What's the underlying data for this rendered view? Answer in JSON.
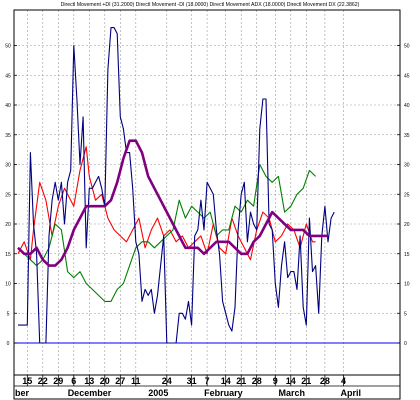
{
  "chart_data": {
    "type": "line",
    "title": "Directl Movement +DI (31.2000) Directl Movement -DI (18.0000) Directl Movement ADX (18.0000) Directl Movement DX (22.3862)",
    "xlabel": "",
    "ylabel": "",
    "ylim": [
      -5,
      55
    ],
    "grid": true,
    "n_points": 113,
    "y_ticks": [
      0,
      5,
      10,
      15,
      20,
      25,
      30,
      35,
      40,
      45,
      50
    ],
    "y_tick_labels": [
      "0",
      "5",
      "10",
      "15",
      "20",
      "25",
      "30",
      "35",
      "40",
      "45",
      "50"
    ],
    "x_ticks": [
      {
        "i": 3,
        "label": "15"
      },
      {
        "i": 8,
        "label": "22"
      },
      {
        "i": 13,
        "label": "29"
      },
      {
        "i": 18,
        "label": "6"
      },
      {
        "i": 23,
        "label": "13"
      },
      {
        "i": 28,
        "label": "20"
      },
      {
        "i": 33,
        "label": "27"
      },
      {
        "i": 38,
        "label": "11"
      },
      {
        "i": 48,
        "label": "24"
      },
      {
        "i": 56,
        "label": "31"
      },
      {
        "i": 61,
        "label": "7"
      },
      {
        "i": 67,
        "label": "14"
      },
      {
        "i": 72,
        "label": "21"
      },
      {
        "i": 77,
        "label": "28"
      },
      {
        "i": 83,
        "label": "9"
      },
      {
        "i": 88,
        "label": "14"
      },
      {
        "i": 93,
        "label": "21"
      },
      {
        "i": 99,
        "label": "28"
      },
      {
        "i": 105,
        "label": "4"
      }
    ],
    "months": [
      {
        "i": 1,
        "label": "ber"
      },
      {
        "i": 17,
        "label": "December"
      },
      {
        "i": 43,
        "label": "2005"
      },
      {
        "i": 61,
        "label": "February"
      },
      {
        "i": 85,
        "label": "March"
      },
      {
        "i": 105,
        "label": "April"
      }
    ],
    "series": [
      {
        "color": "#ff0000",
        "points": [
          [
            0,
            15
          ],
          [
            2,
            17
          ],
          [
            4,
            14
          ],
          [
            5,
            19
          ],
          [
            7,
            27
          ],
          [
            9,
            24
          ],
          [
            11,
            18
          ],
          [
            13,
            23
          ],
          [
            15,
            26
          ],
          [
            16,
            25
          ],
          [
            18,
            23
          ],
          [
            20,
            29
          ],
          [
            22,
            33
          ],
          [
            23,
            28
          ],
          [
            25,
            24
          ],
          [
            27,
            25
          ],
          [
            29,
            21
          ],
          [
            31,
            19
          ],
          [
            33,
            18
          ],
          [
            35,
            17
          ],
          [
            37,
            19
          ],
          [
            39,
            21
          ],
          [
            41,
            16
          ],
          [
            43,
            19
          ],
          [
            45,
            21
          ],
          [
            47,
            18
          ],
          [
            49,
            19
          ],
          [
            51,
            17
          ],
          [
            53,
            18
          ],
          [
            55,
            16
          ],
          [
            57,
            17
          ],
          [
            59,
            18
          ],
          [
            61,
            15
          ],
          [
            63,
            20
          ],
          [
            65,
            16
          ],
          [
            67,
            15
          ],
          [
            69,
            21
          ],
          [
            71,
            18
          ],
          [
            73,
            16
          ],
          [
            75,
            14
          ],
          [
            77,
            19
          ],
          [
            79,
            22
          ],
          [
            81,
            21
          ],
          [
            83,
            17
          ],
          [
            85,
            18
          ],
          [
            87,
            20
          ],
          [
            89,
            19
          ],
          [
            91,
            16
          ],
          [
            93,
            20
          ],
          [
            95,
            17
          ],
          [
            96,
            17
          ]
        ]
      },
      {
        "color": "#008000",
        "points": [
          [
            0,
            16
          ],
          [
            2,
            15
          ],
          [
            4,
            14
          ],
          [
            6,
            13
          ],
          [
            8,
            14
          ],
          [
            10,
            16
          ],
          [
            12,
            20
          ],
          [
            14,
            19
          ],
          [
            16,
            12
          ],
          [
            18,
            11
          ],
          [
            20,
            12
          ],
          [
            22,
            10
          ],
          [
            24,
            9
          ],
          [
            26,
            8
          ],
          [
            28,
            7
          ],
          [
            30,
            7
          ],
          [
            32,
            9
          ],
          [
            34,
            10
          ],
          [
            36,
            13
          ],
          [
            38,
            16
          ],
          [
            40,
            17
          ],
          [
            42,
            17
          ],
          [
            44,
            16
          ],
          [
            46,
            17
          ],
          [
            48,
            18
          ],
          [
            50,
            19
          ],
          [
            52,
            24
          ],
          [
            54,
            21
          ],
          [
            56,
            23
          ],
          [
            58,
            22
          ],
          [
            60,
            21
          ],
          [
            62,
            22
          ],
          [
            64,
            18
          ],
          [
            66,
            19
          ],
          [
            68,
            19
          ],
          [
            70,
            23
          ],
          [
            72,
            22
          ],
          [
            74,
            24
          ],
          [
            76,
            23
          ],
          [
            78,
            30
          ],
          [
            80,
            28
          ],
          [
            82,
            27
          ],
          [
            84,
            28
          ],
          [
            86,
            22
          ],
          [
            88,
            23
          ],
          [
            90,
            25
          ],
          [
            92,
            26
          ],
          [
            94,
            29
          ],
          [
            96,
            28
          ]
        ]
      },
      {
        "color": "#000080",
        "points": [
          [
            0,
            3
          ],
          [
            3,
            3
          ],
          [
            4,
            32
          ],
          [
            5,
            20
          ],
          [
            6,
            15
          ],
          [
            7,
            0
          ],
          [
            8,
            0
          ],
          [
            9,
            0
          ],
          [
            10,
            18
          ],
          [
            11,
            24
          ],
          [
            12,
            27
          ],
          [
            13,
            24
          ],
          [
            14,
            27
          ],
          [
            15,
            20
          ],
          [
            16,
            27
          ],
          [
            17,
            29
          ],
          [
            18,
            50
          ],
          [
            19,
            41
          ],
          [
            20,
            30
          ],
          [
            21,
            38
          ],
          [
            22,
            16
          ],
          [
            23,
            26
          ],
          [
            24,
            26
          ],
          [
            25,
            27
          ],
          [
            26,
            28
          ],
          [
            27,
            26
          ],
          [
            28,
            23
          ],
          [
            29,
            46
          ],
          [
            30,
            53
          ],
          [
            31,
            53
          ],
          [
            32,
            52
          ],
          [
            33,
            38
          ],
          [
            34,
            36
          ],
          [
            35,
            32
          ],
          [
            36,
            32
          ],
          [
            37,
            26
          ],
          [
            38,
            17
          ],
          [
            39,
            15
          ],
          [
            40,
            7
          ],
          [
            41,
            9
          ],
          [
            42,
            8
          ],
          [
            43,
            9
          ],
          [
            44,
            5
          ],
          [
            45,
            8
          ],
          [
            46,
            13
          ],
          [
            47,
            18
          ],
          [
            48,
            0
          ],
          [
            49,
            0
          ],
          [
            50,
            0
          ],
          [
            51,
            0
          ],
          [
            52,
            5
          ],
          [
            53,
            5
          ],
          [
            54,
            4
          ],
          [
            55,
            7
          ],
          [
            56,
            3
          ],
          [
            57,
            18
          ],
          [
            58,
            19
          ],
          [
            59,
            24
          ],
          [
            60,
            19
          ],
          [
            61,
            27
          ],
          [
            62,
            26
          ],
          [
            63,
            25
          ],
          [
            64,
            19
          ],
          [
            65,
            15
          ],
          [
            66,
            7
          ],
          [
            67,
            5
          ],
          [
            68,
            3
          ],
          [
            69,
            2
          ],
          [
            70,
            6
          ],
          [
            71,
            19
          ],
          [
            72,
            25
          ],
          [
            73,
            27
          ],
          [
            74,
            17
          ],
          [
            75,
            22
          ],
          [
            76,
            20
          ],
          [
            77,
            19
          ],
          [
            78,
            36
          ],
          [
            79,
            41
          ],
          [
            80,
            41
          ],
          [
            81,
            20
          ],
          [
            82,
            19
          ],
          [
            83,
            10
          ],
          [
            84,
            6
          ],
          [
            85,
            13
          ],
          [
            86,
            17
          ],
          [
            87,
            11
          ],
          [
            88,
            12
          ],
          [
            89,
            12
          ],
          [
            90,
            9
          ],
          [
            91,
            18
          ],
          [
            92,
            6
          ],
          [
            93,
            3
          ],
          [
            94,
            21
          ],
          [
            95,
            12
          ],
          [
            96,
            13
          ],
          [
            97,
            5
          ],
          [
            98,
            18
          ],
          [
            99,
            23
          ],
          [
            100,
            17
          ],
          [
            101,
            21
          ],
          [
            102,
            22
          ]
        ]
      },
      {
        "color": "#800080",
        "points": [
          [
            0,
            16
          ],
          [
            2,
            15
          ],
          [
            4,
            15
          ],
          [
            6,
            16
          ],
          [
            8,
            14
          ],
          [
            10,
            13
          ],
          [
            12,
            13
          ],
          [
            14,
            14
          ],
          [
            16,
            16
          ],
          [
            18,
            19
          ],
          [
            20,
            21
          ],
          [
            22,
            23
          ],
          [
            24,
            23
          ],
          [
            26,
            23
          ],
          [
            28,
            23
          ],
          [
            30,
            24
          ],
          [
            32,
            27
          ],
          [
            34,
            31
          ],
          [
            36,
            34
          ],
          [
            38,
            34
          ],
          [
            40,
            32
          ],
          [
            42,
            28
          ],
          [
            44,
            26
          ],
          [
            46,
            24
          ],
          [
            48,
            22
          ],
          [
            50,
            20
          ],
          [
            52,
            18
          ],
          [
            54,
            16
          ],
          [
            56,
            16
          ],
          [
            58,
            16
          ],
          [
            60,
            15
          ],
          [
            62,
            16
          ],
          [
            64,
            17
          ],
          [
            66,
            17
          ],
          [
            68,
            17
          ],
          [
            70,
            16
          ],
          [
            72,
            15
          ],
          [
            74,
            15
          ],
          [
            76,
            17
          ],
          [
            78,
            18
          ],
          [
            80,
            20
          ],
          [
            82,
            22
          ],
          [
            84,
            21
          ],
          [
            86,
            20
          ],
          [
            88,
            19
          ],
          [
            90,
            19
          ],
          [
            92,
            19
          ],
          [
            94,
            18
          ],
          [
            96,
            18
          ],
          [
            98,
            18
          ],
          [
            100,
            18
          ]
        ]
      }
    ],
    "baseline": {
      "y": 0,
      "color": "#0000ff"
    }
  }
}
